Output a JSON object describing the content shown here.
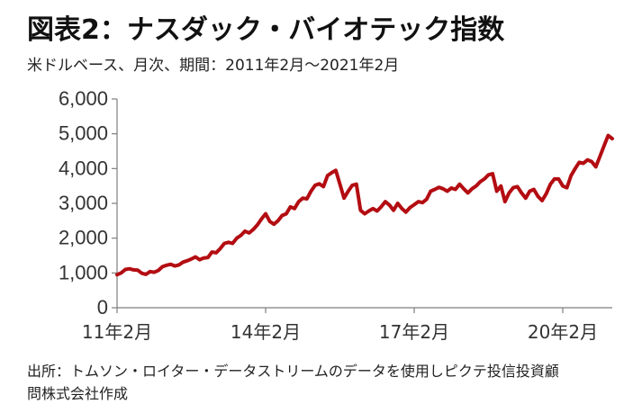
{
  "title": "図表2：ナスダック・バイオテック指数",
  "subtitle": "米ドルベース、月次、期間：2011年2月～2021年2月",
  "source_line1": "出所：トムソン・ロイター・データストリームのデータを使用しピクテ投信投資顧",
  "source_line2": "問株式会社作成",
  "colors": {
    "line": "#b30d12",
    "axis": "#7f7f7f",
    "text": "#333333"
  },
  "chart_data": {
    "type": "line",
    "title": "図表2：ナスダック・バイオテック指数",
    "ylim": [
      0,
      6000
    ],
    "yticks": [
      "0",
      "1,000",
      "2,000",
      "3,000",
      "4,000",
      "5,000",
      "6,000"
    ],
    "ytick_values": [
      0,
      1000,
      2000,
      3000,
      4000,
      5000,
      6000
    ],
    "xticks": [
      "11年2月",
      "14年2月",
      "17年2月",
      "20年2月"
    ],
    "xtick_positions": [
      "2011-02",
      "2014-02",
      "2017-02",
      "2020-02"
    ],
    "x_range": [
      "2011-02",
      "2021-02"
    ],
    "grid": false,
    "x": [
      "2011-02",
      "2011-03",
      "2011-04",
      "2011-05",
      "2011-06",
      "2011-07",
      "2011-08",
      "2011-09",
      "2011-10",
      "2011-11",
      "2011-12",
      "2012-01",
      "2012-02",
      "2012-03",
      "2012-04",
      "2012-05",
      "2012-06",
      "2012-07",
      "2012-08",
      "2012-09",
      "2012-10",
      "2012-11",
      "2012-12",
      "2013-01",
      "2013-02",
      "2013-03",
      "2013-04",
      "2013-05",
      "2013-06",
      "2013-07",
      "2013-08",
      "2013-09",
      "2013-10",
      "2013-11",
      "2013-12",
      "2014-01",
      "2014-02",
      "2014-03",
      "2014-04",
      "2014-05",
      "2014-06",
      "2014-07",
      "2014-08",
      "2014-09",
      "2014-10",
      "2014-11",
      "2014-12",
      "2015-01",
      "2015-02",
      "2015-03",
      "2015-04",
      "2015-05",
      "2015-06",
      "2015-07",
      "2015-08",
      "2015-09",
      "2015-10",
      "2015-11",
      "2015-12",
      "2016-01",
      "2016-02",
      "2016-03",
      "2016-04",
      "2016-05",
      "2016-06",
      "2016-07",
      "2016-08",
      "2016-09",
      "2016-10",
      "2016-11",
      "2016-12",
      "2017-01",
      "2017-02",
      "2017-03",
      "2017-04",
      "2017-05",
      "2017-06",
      "2017-07",
      "2017-08",
      "2017-09",
      "2017-10",
      "2017-11",
      "2017-12",
      "2018-01",
      "2018-02",
      "2018-03",
      "2018-04",
      "2018-05",
      "2018-06",
      "2018-07",
      "2018-08",
      "2018-09",
      "2018-10",
      "2018-11",
      "2018-12",
      "2019-01",
      "2019-02",
      "2019-03",
      "2019-04",
      "2019-05",
      "2019-06",
      "2019-07",
      "2019-08",
      "2019-09",
      "2019-10",
      "2019-11",
      "2019-12",
      "2020-01",
      "2020-02",
      "2020-03",
      "2020-04",
      "2020-05",
      "2020-06",
      "2020-07",
      "2020-08",
      "2020-09",
      "2020-10",
      "2020-11",
      "2020-12",
      "2021-01",
      "2021-02"
    ],
    "series": [
      {
        "values": [
          950,
          1000,
          1100,
          1120,
          1090,
          1080,
          990,
          960,
          1040,
          1020,
          1070,
          1180,
          1220,
          1250,
          1200,
          1230,
          1310,
          1350,
          1400,
          1460,
          1380,
          1430,
          1440,
          1600,
          1580,
          1700,
          1850,
          1880,
          1850,
          2000,
          2080,
          2200,
          2150,
          2250,
          2380,
          2550,
          2700,
          2480,
          2400,
          2500,
          2650,
          2700,
          2900,
          2850,
          3050,
          3150,
          3130,
          3350,
          3520,
          3560,
          3480,
          3800,
          3880,
          3950,
          3550,
          3150,
          3350,
          3520,
          3550,
          2800,
          2700,
          2780,
          2850,
          2780,
          2900,
          3050,
          2950,
          2800,
          3000,
          2850,
          2750,
          2880,
          2960,
          3050,
          3020,
          3120,
          3350,
          3400,
          3460,
          3420,
          3350,
          3440,
          3400,
          3550,
          3420,
          3300,
          3420,
          3500,
          3620,
          3700,
          3820,
          3850,
          3350,
          3500,
          3050,
          3300,
          3450,
          3480,
          3300,
          3150,
          3350,
          3400,
          3200,
          3080,
          3280,
          3550,
          3700,
          3700,
          3500,
          3450,
          3800,
          4000,
          4180,
          4150,
          4250,
          4200,
          4050,
          4350,
          4650,
          4950,
          4860
        ]
      }
    ]
  }
}
